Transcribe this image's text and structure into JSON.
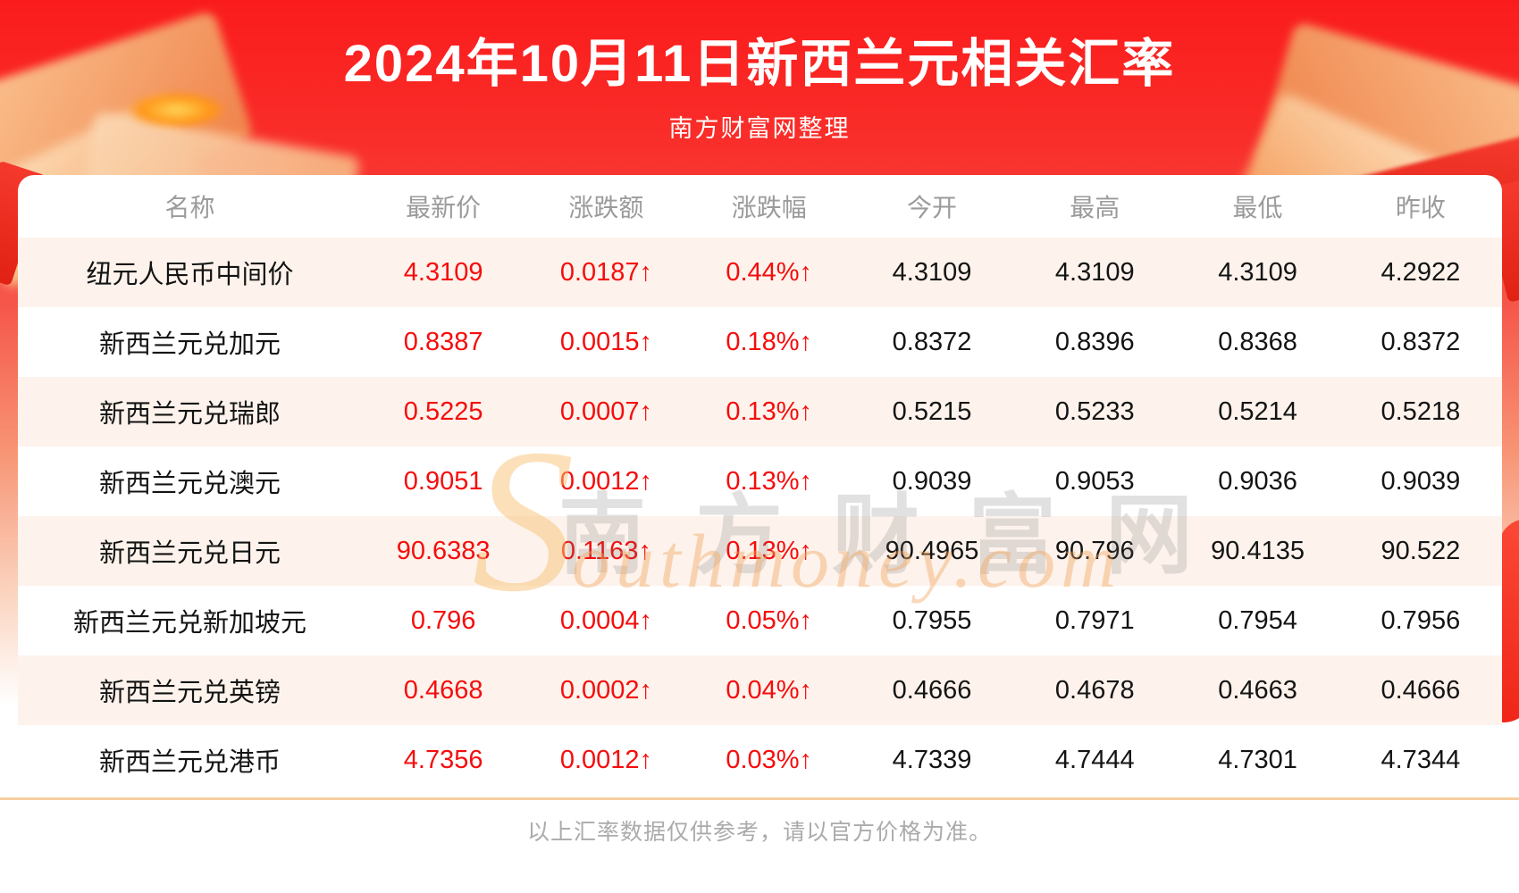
{
  "chart_data": {
    "type": "table",
    "title": "2024年10月11日新西兰元相关汇率",
    "subtitle": "南方财富网整理",
    "columns": [
      "名称",
      "最新价",
      "涨跌额",
      "涨跌幅",
      "今开",
      "最高",
      "最低",
      "昨收"
    ],
    "rows": [
      [
        "纽元人民币中间价",
        "4.3109",
        "0.0187↑",
        "0.44%↑",
        "4.3109",
        "4.3109",
        "4.3109",
        "4.2922"
      ],
      [
        "新西兰元兑加元",
        "0.8387",
        "0.0015↑",
        "0.18%↑",
        "0.8372",
        "0.8396",
        "0.8368",
        "0.8372"
      ],
      [
        "新西兰元兑瑞郎",
        "0.5225",
        "0.0007↑",
        "0.13%↑",
        "0.5215",
        "0.5233",
        "0.5214",
        "0.5218"
      ],
      [
        "新西兰元兑澳元",
        "0.9051",
        "0.0012↑",
        "0.13%↑",
        "0.9039",
        "0.9053",
        "0.9036",
        "0.9039"
      ],
      [
        "新西兰元兑日元",
        "90.6383",
        "0.1163↑",
        "0.13%↑",
        "90.4965",
        "90.796",
        "90.4135",
        "90.522"
      ],
      [
        "新西兰元兑新加坡元",
        "0.796",
        "0.0004↑",
        "0.05%↑",
        "0.7955",
        "0.7971",
        "0.7954",
        "0.7956"
      ],
      [
        "新西兰元兑英镑",
        "0.4668",
        "0.0002↑",
        "0.04%↑",
        "0.4666",
        "0.4678",
        "0.4663",
        "0.4666"
      ],
      [
        "新西兰元兑港币",
        "4.7356",
        "0.0012↑",
        "0.03%↑",
        "4.7339",
        "4.7444",
        "4.7301",
        "4.7344"
      ]
    ]
  },
  "watermark": {
    "initial": "S",
    "en": "outhmoney.com",
    "cn": "南方财富网"
  },
  "footer": {
    "note": "以上汇率数据仅供参考，请以官方价格为准。"
  },
  "colors": {
    "value_red": "#f50d0d",
    "stripe": "#fdf3ec",
    "header_gray": "#9b9b9b",
    "divider_orange": "#f7cfa0",
    "background_red": "#fa1c1c"
  }
}
